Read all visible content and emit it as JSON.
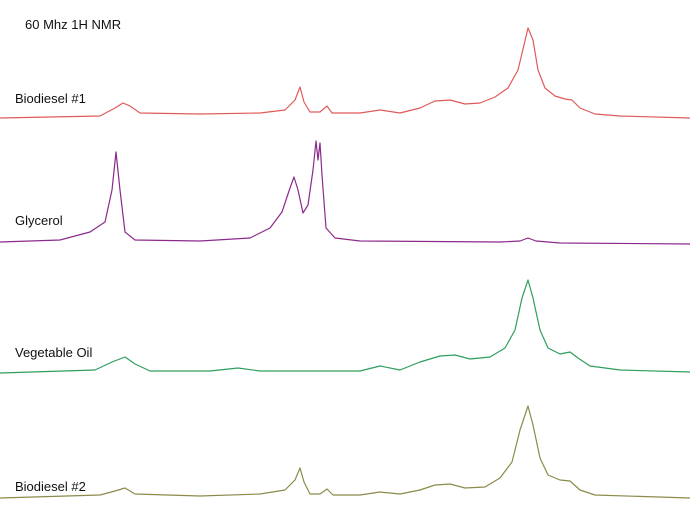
{
  "header": {
    "title": "60 Mhz 1H NMR"
  },
  "spectra": [
    {
      "label": "Biodiesel #1"
    },
    {
      "label": "Glycerol"
    },
    {
      "label": "Vegetable Oil"
    },
    {
      "label": "Biodiesel #2"
    }
  ]
}
